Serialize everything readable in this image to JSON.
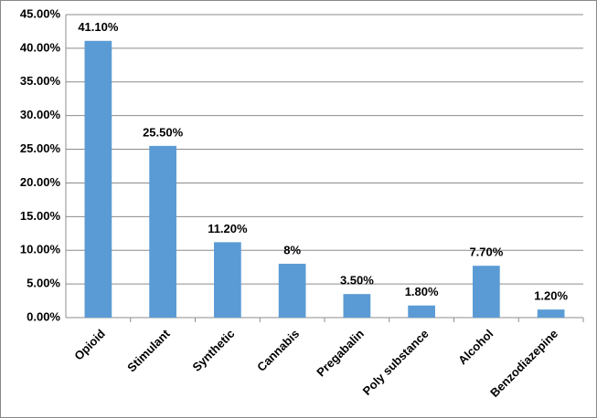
{
  "chart_data": {
    "type": "bar",
    "categories": [
      "Opioid",
      "Stimulant",
      "Synthetic",
      "Cannabis",
      "Pregabalin",
      "Poly substance",
      "Alcohol",
      "Benzodiazepine"
    ],
    "values": [
      41.1,
      25.5,
      11.2,
      8,
      3.5,
      1.8,
      7.7,
      1.2
    ],
    "value_labels": [
      "41.10%",
      "25.50%",
      "11.20%",
      "8%",
      "3.50%",
      "1.80%",
      "7.70%",
      "1.20%"
    ],
    "color": "#5b9bd5",
    "ylim": [
      0,
      45
    ],
    "yticks": [
      {
        "value": 0,
        "label": "0.00%"
      },
      {
        "value": 5,
        "label": "5.00%"
      },
      {
        "value": 10,
        "label": "10.00%"
      },
      {
        "value": 15,
        "label": "15.00%"
      },
      {
        "value": 20,
        "label": "20.00%"
      },
      {
        "value": 25,
        "label": "25.00%"
      },
      {
        "value": 30,
        "label": "30.00%"
      },
      {
        "value": 35,
        "label": "35.00%"
      },
      {
        "value": 40,
        "label": "40.00%"
      },
      {
        "value": 45,
        "label": "45.00%"
      }
    ],
    "grid": true
  }
}
